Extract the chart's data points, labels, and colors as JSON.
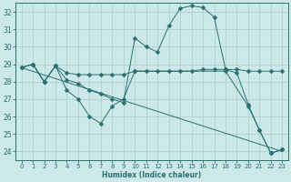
{
  "xlabel": "Humidex (Indice chaleur)",
  "bg_color": "#cce8e8",
  "grid_color": "#aacccc",
  "line_color": "#2a7070",
  "xlim": [
    -0.5,
    23.5
  ],
  "ylim": [
    23.5,
    32.5
  ],
  "yticks": [
    24,
    25,
    26,
    27,
    28,
    29,
    30,
    31,
    32
  ],
  "xticks": [
    0,
    1,
    2,
    3,
    4,
    5,
    6,
    7,
    8,
    9,
    10,
    11,
    12,
    13,
    14,
    15,
    16,
    17,
    18,
    19,
    20,
    21,
    22,
    23
  ],
  "lines": [
    {
      "x": [
        0,
        1,
        2,
        3,
        4,
        5,
        6,
        7,
        8,
        9,
        10,
        11,
        12,
        13,
        14,
        15,
        16,
        17,
        18,
        19,
        20,
        21,
        22,
        23
      ],
      "y": [
        28.8,
        29.0,
        28.0,
        28.9,
        28.1,
        27.9,
        27.5,
        27.3,
        27.0,
        26.8,
        30.5,
        30.0,
        29.7,
        31.2,
        32.2,
        32.35,
        32.25,
        31.7,
        28.7,
        28.5,
        26.7,
        25.2,
        23.9,
        24.1
      ],
      "marker": "D",
      "markersize": 2.5,
      "has_markers": true
    },
    {
      "x": [
        0,
        1,
        2,
        3,
        4,
        5,
        6,
        7,
        8,
        9,
        10,
        11,
        12,
        13,
        14,
        15,
        16,
        17,
        18,
        19,
        20,
        21,
        22,
        23
      ],
      "y": [
        28.8,
        29.0,
        28.0,
        28.9,
        28.5,
        28.4,
        28.4,
        28.4,
        28.4,
        28.4,
        28.6,
        28.6,
        28.6,
        28.6,
        28.6,
        28.6,
        28.7,
        28.7,
        28.7,
        28.7,
        28.6,
        28.6,
        28.6,
        28.6
      ],
      "marker": "D",
      "markersize": 2.5,
      "has_markers": true
    },
    {
      "x": [
        0,
        23
      ],
      "y": [
        28.8,
        24.0
      ],
      "marker": null,
      "markersize": 0,
      "has_markers": false
    },
    {
      "x": [
        0,
        1,
        2,
        3,
        4,
        5,
        6,
        7,
        8,
        9,
        10,
        18,
        20,
        21,
        22,
        23
      ],
      "y": [
        28.8,
        29.0,
        28.0,
        28.9,
        27.5,
        27.0,
        26.0,
        25.6,
        26.6,
        27.0,
        28.6,
        28.6,
        26.6,
        25.2,
        23.9,
        24.1
      ],
      "marker": "D",
      "markersize": 2.5,
      "has_markers": true
    }
  ]
}
